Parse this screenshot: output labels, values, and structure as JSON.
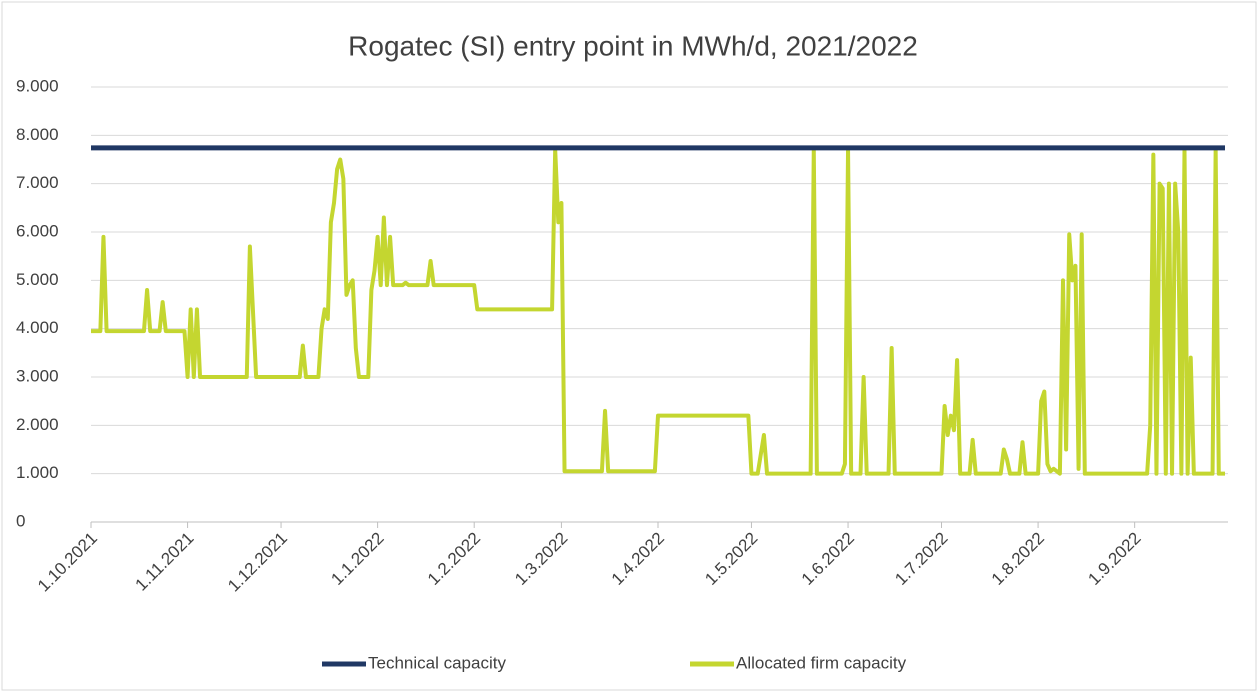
{
  "chart_data": {
    "type": "line",
    "title": "Rogatec (SI) entry point in MWh/d, 2021/2022",
    "xlim": [
      "1.10.2021",
      "30.9.2022"
    ],
    "xticks": [
      "1.10.2021",
      "1.11.2021",
      "1.12.2021",
      "1.1.2022",
      "1.2.2022",
      "1.3.2022",
      "1.4.2022",
      "1.5.2022",
      "1.6.2022",
      "1.7.2022",
      "1.8.2022",
      "1.9.2022"
    ],
    "ylim": [
      0,
      9000
    ],
    "yticks": [
      0,
      {
        "value": 1000,
        "label": "1.000"
      },
      {
        "value": 2000,
        "label": "2.000"
      },
      {
        "value": 3000,
        "label": "3.000"
      },
      {
        "value": 4000,
        "label": "4.000"
      },
      {
        "value": 5000,
        "label": "5.000"
      },
      {
        "value": 6000,
        "label": "6.000"
      },
      {
        "value": 7000,
        "label": "7.000"
      },
      {
        "value": 8000,
        "label": "8.000"
      },
      {
        "value": 9000,
        "label": "9.000"
      }
    ],
    "grid": true,
    "legend": "bottom",
    "series": [
      {
        "name": "Technical capacity",
        "color": "#203864",
        "x": [
          "1.10.2021",
          "30.9.2022"
        ],
        "values": [
          7740,
          7740
        ]
      },
      {
        "name": "Allocated firm capacity",
        "color": "#c4d630",
        "x": [
          "1.10.2021",
          "4.10.2021",
          "5.10.2021",
          "6.10.2021",
          "18.10.2021",
          "19.10.2021",
          "20.10.2021",
          "23.10.2021",
          "24.10.2021",
          "25.10.2021",
          "31.10.2021",
          "1.11.2021",
          "2.11.2021",
          "3.11.2021",
          "4.11.2021",
          "5.11.2021",
          "20.11.2021",
          "21.11.2021",
          "23.11.2021",
          "1.12.2021",
          "7.12.2021",
          "8.12.2021",
          "9.12.2021",
          "13.12.2021",
          "14.12.2021",
          "15.12.2021",
          "16.12.2021",
          "17.12.2021",
          "18.12.2021",
          "19.12.2021",
          "20.12.2021",
          "21.12.2021",
          "22.12.2021",
          "23.12.2021",
          "24.12.2021",
          "25.12.2021",
          "26.12.2021",
          "29.12.2021",
          "30.12.2021",
          "31.12.2021",
          "1.1.2022",
          "2.1.2022",
          "3.1.2022",
          "4.1.2022",
          "5.1.2022",
          "6.1.2022",
          "9.1.2022",
          "10.1.2022",
          "11.1.2022",
          "17.1.2022",
          "18.1.2022",
          "19.1.2022",
          "1.2.2022",
          "2.2.2022",
          "26.2.2022",
          "27.2.2022",
          "28.2.2022",
          "1.3.2022",
          "2.3.2022",
          "14.3.2022",
          "15.3.2022",
          "16.3.2022",
          "31.3.2022",
          "1.4.2022",
          "30.4.2022",
          "1.5.2022",
          "3.5.2022",
          "5.5.2022",
          "6.5.2022",
          "20.5.2022",
          "21.5.2022",
          "22.5.2022",
          "30.5.2022",
          "31.5.2022",
          "1.6.2022",
          "2.6.2022",
          "5.6.2022",
          "6.6.2022",
          "7.6.2022",
          "14.6.2022",
          "15.6.2022",
          "16.6.2022",
          "1.7.2022",
          "2.7.2022",
          "3.7.2022",
          "4.7.2022",
          "5.7.2022",
          "6.7.2022",
          "7.7.2022",
          "10.7.2022",
          "11.7.2022",
          "12.7.2022",
          "20.7.2022",
          "21.7.2022",
          "22.7.2022",
          "23.7.2022",
          "26.7.2022",
          "27.7.2022",
          "28.7.2022",
          "1.8.2022",
          "2.8.2022",
          "3.8.2022",
          "4.8.2022",
          "5.8.2022",
          "6.8.2022",
          "8.8.2022",
          "9.8.2022",
          "10.8.2022",
          "11.8.2022",
          "12.8.2022",
          "13.8.2022",
          "14.8.2022",
          "15.8.2022",
          "16.8.2022",
          "5.9.2022",
          "6.9.2022",
          "7.9.2022",
          "8.9.2022",
          "9.9.2022",
          "10.9.2022",
          "11.9.2022",
          "12.9.2022",
          "13.9.2022",
          "14.9.2022",
          "15.9.2022",
          "16.9.2022",
          "17.9.2022",
          "18.9.2022",
          "19.9.2022",
          "20.9.2022",
          "26.9.2022",
          "27.9.2022",
          "28.9.2022",
          "30.9.2022"
        ],
        "values": [
          3950,
          3950,
          5900,
          3950,
          3950,
          4800,
          3950,
          3950,
          4550,
          3950,
          3950,
          3000,
          4400,
          3000,
          4400,
          3000,
          3000,
          5700,
          3000,
          3000,
          3000,
          3650,
          3000,
          3000,
          4000,
          4400,
          4200,
          6200,
          6600,
          7300,
          7500,
          7100,
          4700,
          4900,
          5000,
          3600,
          3000,
          3000,
          4800,
          5200,
          5900,
          4900,
          6300,
          4900,
          5900,
          4900,
          4900,
          4950,
          4900,
          4900,
          5400,
          4900,
          4900,
          4400,
          4400,
          7700,
          6200,
          6600,
          1050,
          1050,
          2300,
          1050,
          1050,
          2200,
          2200,
          1000,
          1000,
          1800,
          1000,
          1000,
          7700,
          1000,
          1000,
          1200,
          7700,
          1000,
          1000,
          3000,
          1000,
          1000,
          3600,
          1000,
          1000,
          2400,
          1800,
          2200,
          1900,
          3350,
          1000,
          1000,
          1700,
          1000,
          1000,
          1500,
          1300,
          1000,
          1000,
          1650,
          1000,
          1000,
          2500,
          2700,
          1200,
          1050,
          1100,
          1000,
          5000,
          1500,
          5950,
          5000,
          5300,
          1100,
          5950,
          1000,
          1000,
          2000,
          7600,
          1000,
          7000,
          6900,
          1000,
          7000,
          1000,
          7000,
          6000,
          1000,
          7700,
          1000,
          3400,
          1000,
          1000,
          7700,
          1000,
          1000
        ]
      }
    ]
  }
}
